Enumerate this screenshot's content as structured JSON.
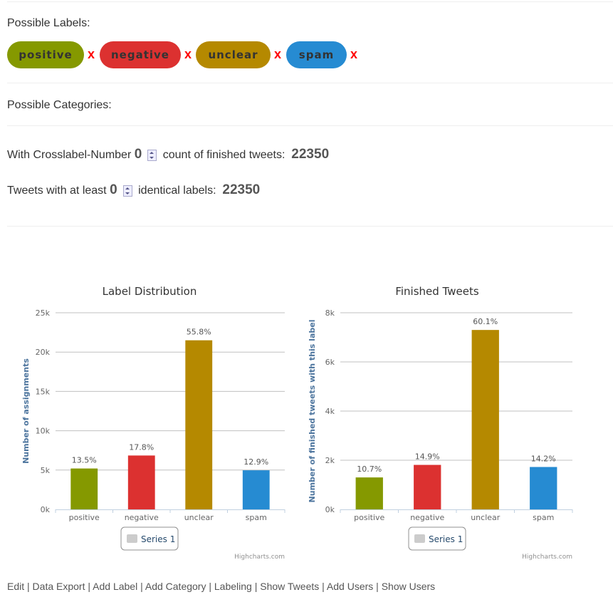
{
  "labels_heading": "Possible Labels:",
  "labels": [
    {
      "name": "positive",
      "color": "#859900"
    },
    {
      "name": "negative",
      "color": "#dc3130"
    },
    {
      "name": "unclear",
      "color": "#b58900"
    },
    {
      "name": "spam",
      "color": "#268bd2"
    }
  ],
  "remove_glyph": "x",
  "categories_heading": "Possible Categories:",
  "crosslabel": {
    "prefix": "With Crosslabel-Number",
    "value": "0",
    "suffix": "count of finished tweets:",
    "count": "22350"
  },
  "identical": {
    "prefix": "Tweets with at least",
    "value": "0",
    "suffix": "identical labels:",
    "count": "22350"
  },
  "chart_data": [
    {
      "type": "bar",
      "title": "Label Distribution",
      "ylabel": "Number of assignments",
      "categories": [
        "positive",
        "negative",
        "unclear",
        "spam"
      ],
      "values": [
        5200,
        6850,
        21500,
        4970
      ],
      "data_labels": [
        "13.5%",
        "17.8%",
        "55.8%",
        "12.9%"
      ],
      "yticks": [
        "0k",
        "5k",
        "10k",
        "15k",
        "20k",
        "25k"
      ],
      "ylim": [
        0,
        25000
      ],
      "legend": "Series 1",
      "credit": "Highcharts.com",
      "colors": [
        "#859900",
        "#dc3130",
        "#b58900",
        "#268bd2"
      ]
    },
    {
      "type": "bar",
      "title": "Finished Tweets",
      "ylabel": "Number of finished tweets with this label",
      "categories": [
        "positive",
        "negative",
        "unclear",
        "spam"
      ],
      "values": [
        1300,
        1810,
        7300,
        1725
      ],
      "data_labels": [
        "10.7%",
        "14.9%",
        "60.1%",
        "14.2%"
      ],
      "yticks": [
        "0k",
        "2k",
        "4k",
        "6k",
        "8k"
      ],
      "ylim": [
        0,
        8000
      ],
      "legend": "Series 1",
      "credit": "Highcharts.com",
      "colors": [
        "#859900",
        "#dc3130",
        "#b58900",
        "#268bd2"
      ]
    }
  ],
  "footer_links": [
    "Edit",
    "Data Export",
    "Add Label",
    "Add Category",
    "Labeling",
    "Show Tweets",
    "Add Users",
    "Show Users"
  ]
}
